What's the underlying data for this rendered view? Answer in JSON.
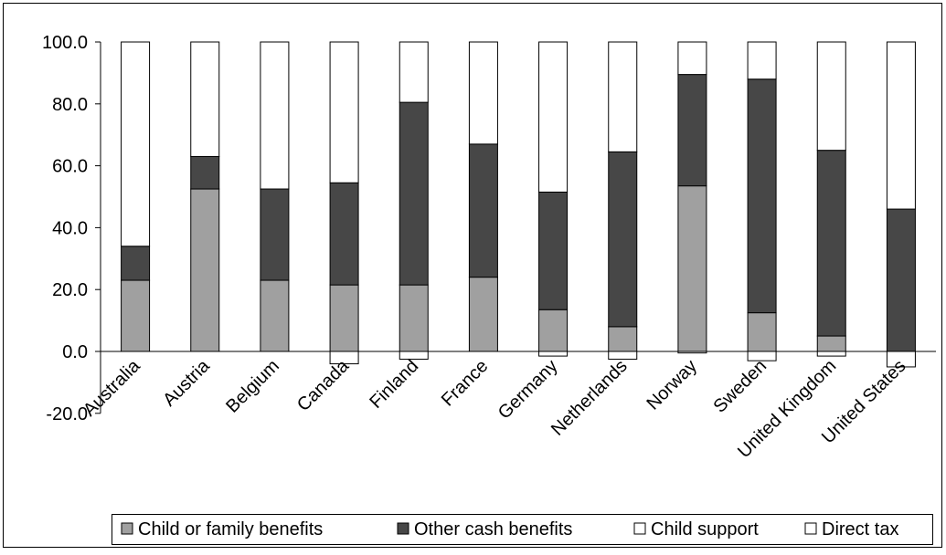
{
  "chart_data": {
    "type": "bar",
    "stacked": true,
    "categories": [
      "Australia",
      "Austria",
      "Belgium",
      "Canada",
      "Finland",
      "France",
      "Germany",
      "Netherlands",
      "Norway",
      "Sweden",
      "United Kingdom",
      "United States"
    ],
    "series": [
      {
        "name": "Child or family benefits",
        "color": "#a0a0a0",
        "values": [
          23.0,
          52.5,
          23.0,
          21.5,
          21.5,
          24.0,
          13.5,
          8.0,
          53.5,
          12.5,
          5.0,
          0.0
        ]
      },
      {
        "name": "Other cash benefits",
        "color": "#474747",
        "values": [
          11.0,
          10.5,
          29.5,
          33.0,
          59.0,
          43.0,
          38.0,
          56.5,
          36.0,
          75.5,
          60.0,
          46.0
        ]
      },
      {
        "name": "Child support",
        "color": "#ffffff",
        "values": [
          66.0,
          37.0,
          47.5,
          45.5,
          19.5,
          33.0,
          48.5,
          35.5,
          10.5,
          12.0,
          35.0,
          54.0
        ]
      },
      {
        "name": "Direct tax",
        "color": "#ffffff",
        "values": [
          0.0,
          0.0,
          0.0,
          -4.0,
          -2.5,
          0.0,
          -1.5,
          -2.5,
          -0.5,
          -3.0,
          -1.5,
          -5.0
        ]
      }
    ],
    "y_tick_labels": [
      "100.0",
      "80.0",
      "60.0",
      "40.0",
      "20.0",
      "0.0",
      "-20.0"
    ],
    "ylim": [
      -20,
      100
    ],
    "y_step": 20,
    "grid": false,
    "legend_position": "bottom"
  }
}
